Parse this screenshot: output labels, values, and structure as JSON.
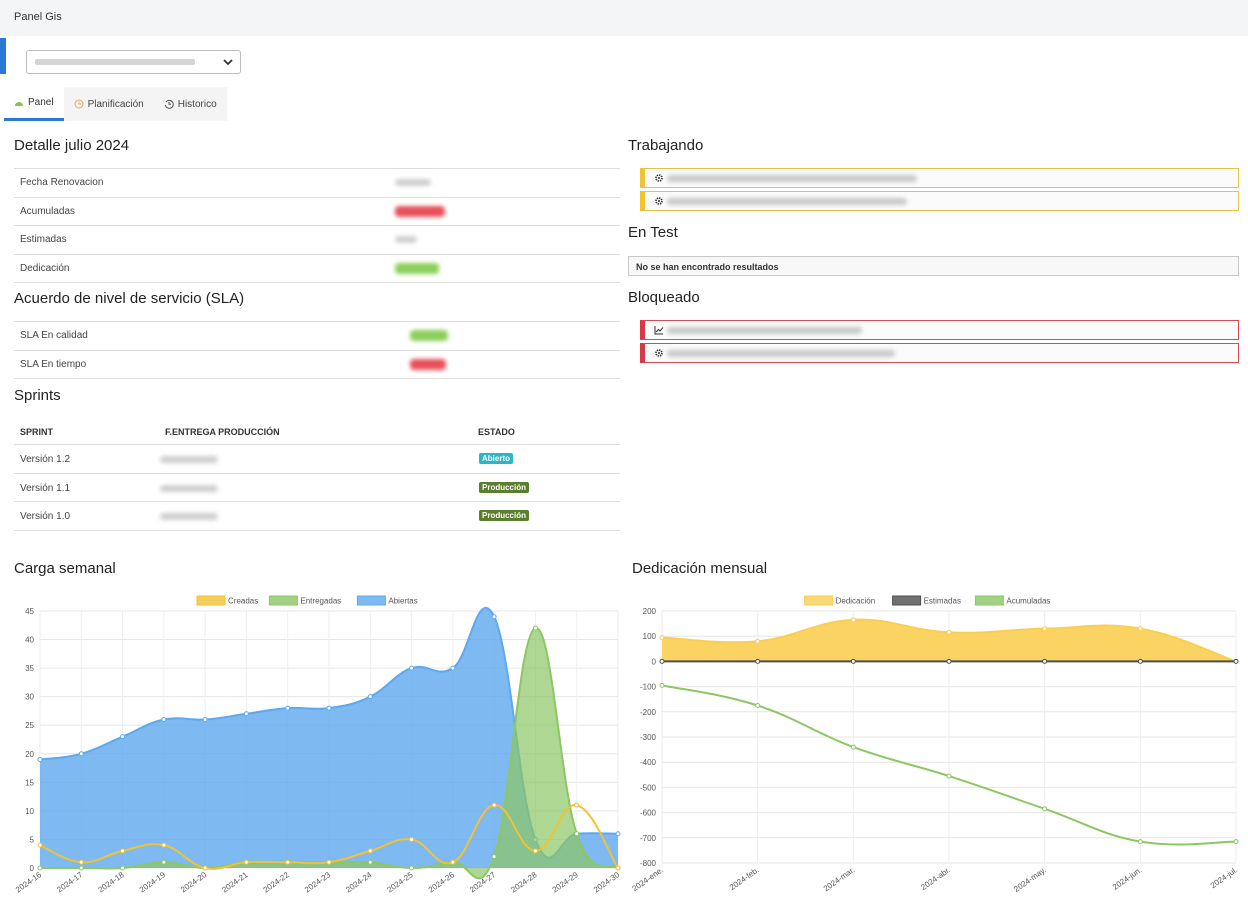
{
  "app": {
    "title": "Panel Gis"
  },
  "tabs": [
    {
      "label": "Panel",
      "icon": "dashboard-icon",
      "color": "#8bc34a"
    },
    {
      "label": "Planificación",
      "icon": "clock-icon",
      "color": "#f4a261"
    },
    {
      "label": "Historico",
      "icon": "history-icon",
      "color": "#555555"
    }
  ],
  "detail": {
    "title": "Detalle julio 2024",
    "rows": [
      {
        "label": "Fecha Renovacion"
      },
      {
        "label": "Acumuladas"
      },
      {
        "label": "Estimadas"
      },
      {
        "label": "Dedicación"
      }
    ]
  },
  "sla": {
    "title": "Acuerdo de nivel de servicio (SLA)",
    "rows": [
      {
        "label": "SLA En calidad"
      },
      {
        "label": "SLA En tiempo"
      }
    ]
  },
  "sprints": {
    "title": "Sprints",
    "headers": [
      "SPRINT",
      "F.ENTREGA PRODUCCIÓN",
      "ESTADO"
    ],
    "rows": [
      {
        "version": "Versión 1.2",
        "estado": "Abierto"
      },
      {
        "version": "Versión 1.1",
        "estado": "Producción"
      },
      {
        "version": "Versión 1.0",
        "estado": "Producción"
      }
    ]
  },
  "trabajando": {
    "title": "Trabajando"
  },
  "en_test": {
    "title": "En Test",
    "empty_text": "No se han encontrado resultados"
  },
  "bloqueado": {
    "title": "Bloqueado"
  },
  "colors": {
    "accent": "#2b79d6",
    "creadas": "#f0c234",
    "entregadas": "#8cc665",
    "abiertas": "#5ea9ee",
    "dedicacion": "#f9ce52",
    "estimadas": "#4d4d4d",
    "acumuladas": "#8cc665",
    "badge_abierto": "#2ab5c8",
    "badge_produccion": "#5b7e2c"
  },
  "chart_data": [
    {
      "type": "area",
      "title": "Carga semanal",
      "categories": [
        "2024-16",
        "2024-17",
        "2024-18",
        "2024-19",
        "2024-20",
        "2024-21",
        "2024-22",
        "2024-23",
        "2024-24",
        "2024-25",
        "2024-26",
        "2024-27",
        "2024-28",
        "2024-29",
        "2024-30"
      ],
      "ylim": [
        0,
        45
      ],
      "yticks": [
        0,
        5,
        10,
        15,
        20,
        25,
        30,
        35,
        40,
        45
      ],
      "legend_position": "top",
      "grid": true,
      "series": [
        {
          "name": "Creadas",
          "values": [
            4,
            1,
            3,
            4,
            0,
            1,
            1,
            1,
            3,
            5,
            1,
            11,
            3,
            11,
            0
          ]
        },
        {
          "name": "Entregadas",
          "values": [
            0,
            0,
            0,
            1,
            0,
            1,
            1,
            1,
            1,
            0,
            1,
            2,
            42,
            6,
            0
          ]
        },
        {
          "name": "Abiertas",
          "values": [
            19,
            20,
            23,
            26,
            26,
            27,
            28,
            28,
            30,
            35,
            35,
            44,
            5,
            6,
            6
          ]
        }
      ]
    },
    {
      "type": "area",
      "title": "Dedicación mensual",
      "categories": [
        "2024-ene.",
        "2024-feb.",
        "2024-mar.",
        "2024-abr.",
        "2024-may.",
        "2024-jun.",
        "2024-jul."
      ],
      "ylim": [
        -800,
        200
      ],
      "yticks": [
        200,
        100,
        0,
        -100,
        -200,
        -300,
        -400,
        -500,
        -600,
        -700,
        -800
      ],
      "legend_position": "top",
      "grid": true,
      "series": [
        {
          "name": "Dedicación",
          "values": [
            95,
            80,
            165,
            115,
            130,
            130,
            0
          ]
        },
        {
          "name": "Estimadas",
          "values": [
            0,
            0,
            0,
            0,
            0,
            0,
            0
          ]
        },
        {
          "name": "Acumuladas",
          "values": [
            -95,
            -175,
            -340,
            -455,
            -585,
            -715,
            -715
          ]
        }
      ]
    }
  ]
}
